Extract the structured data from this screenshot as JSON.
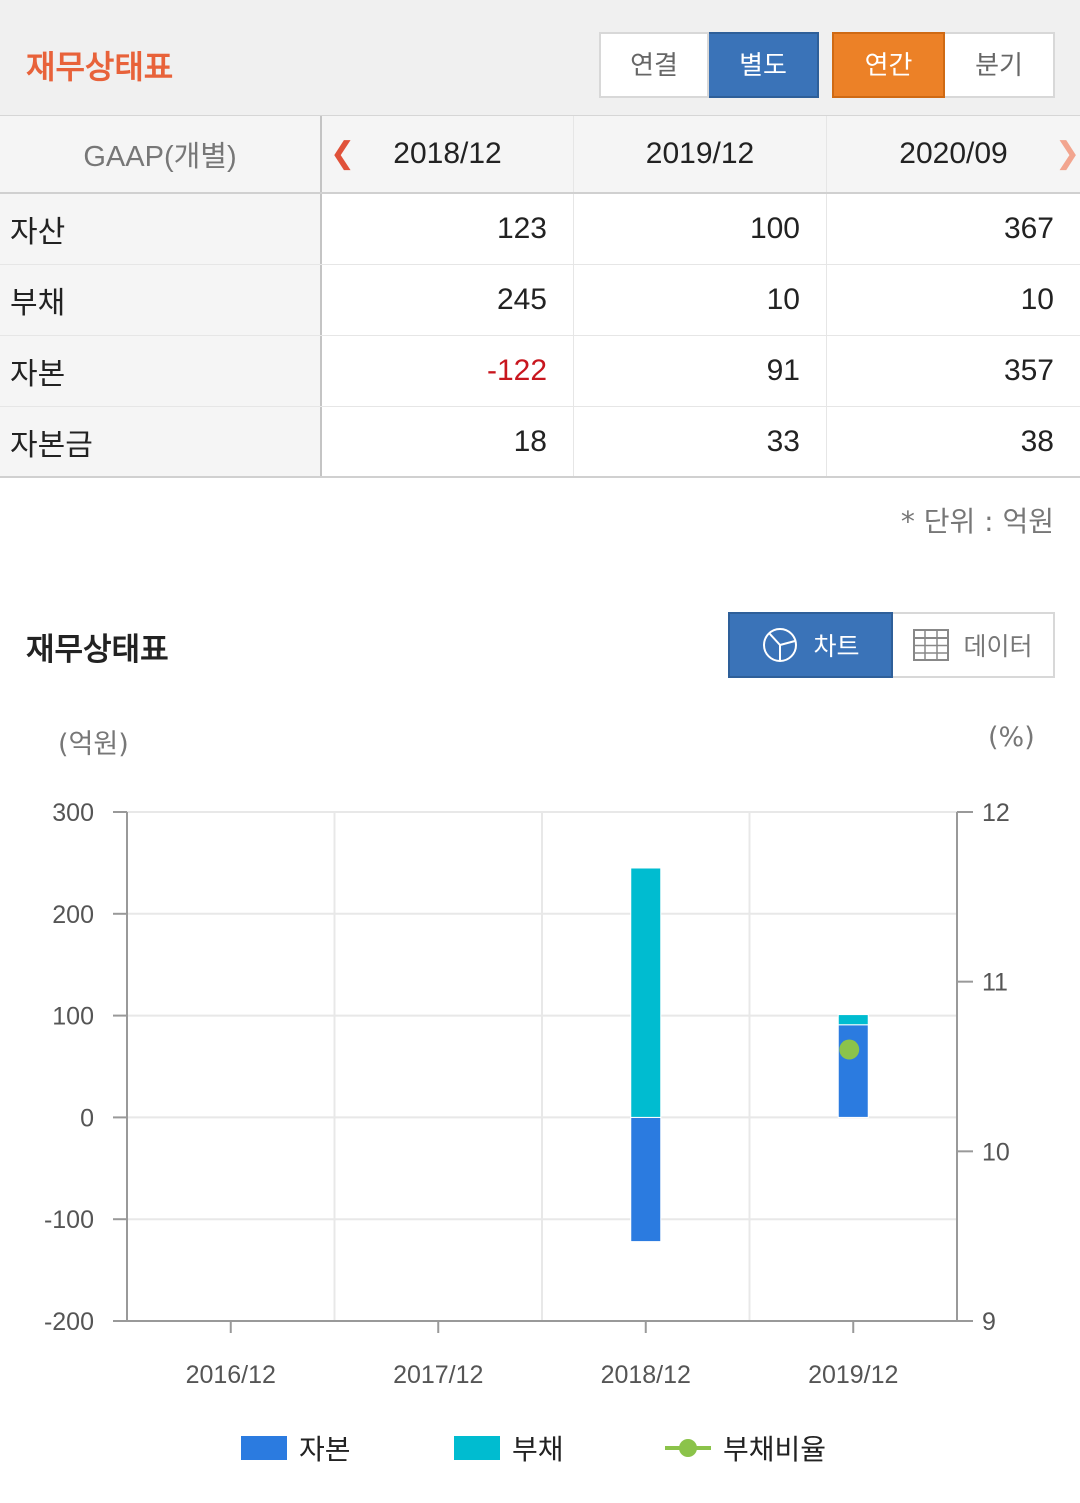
{
  "header": {
    "title": "재무상태표",
    "scope_buttons": [
      "연결",
      "별도"
    ],
    "scope_active": "별도",
    "period_buttons": [
      "연간",
      "분기"
    ],
    "period_active": "연간",
    "colors": {
      "title": "#e8623a",
      "active_blue": "#3a73b8",
      "active_orange": "#ec8127"
    }
  },
  "table": {
    "basis": "GAAP(개별)",
    "columns": [
      "2018/12",
      "2019/12",
      "2020/09"
    ],
    "rows": [
      {
        "label": "자산",
        "values": [
          "123",
          "100",
          "367"
        ]
      },
      {
        "label": "부채",
        "values": [
          "245",
          "10",
          "10"
        ]
      },
      {
        "label": "자본",
        "values": [
          "-122",
          "91",
          "357"
        ]
      },
      {
        "label": "자본금",
        "values": [
          "18",
          "33",
          "38"
        ]
      }
    ],
    "negative_color": "#c8161e"
  },
  "unit_note": "* 단위 : 억원",
  "chart_section": {
    "title": "재무상태표",
    "toggle": {
      "chart_label": "차트",
      "data_label": "데이터",
      "active": "차트"
    },
    "left_unit": "(억원)",
    "right_unit": "(%)"
  },
  "chart_data": {
    "type": "bar",
    "stacked": true,
    "categories": [
      "2016/12",
      "2017/12",
      "2018/12",
      "2019/12"
    ],
    "series": [
      {
        "name": "자본",
        "type": "bar",
        "color": "#2b7be0",
        "values": [
          null,
          null,
          -122,
          91
        ]
      },
      {
        "name": "부채",
        "type": "bar",
        "color": "#00bcd0",
        "values": [
          null,
          null,
          245,
          10
        ]
      },
      {
        "name": "부채비율",
        "type": "line",
        "axis": "right",
        "color": "#8bc34a",
        "values": [
          null,
          null,
          null,
          10.6
        ]
      }
    ],
    "y_left": {
      "ticks": [
        300,
        200,
        100,
        0,
        -100,
        -200
      ],
      "ylim": [
        -200,
        300
      ]
    },
    "y_right": {
      "ticks": [
        12,
        11,
        10,
        9
      ],
      "ylim": [
        9,
        12
      ]
    },
    "grid": true,
    "legend_position": "bottom"
  }
}
